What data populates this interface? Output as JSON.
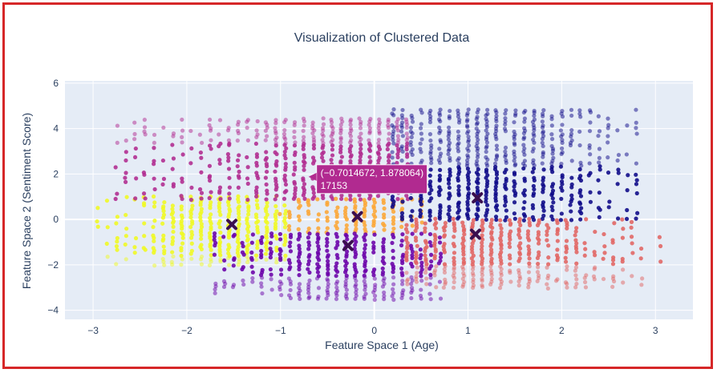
{
  "chart_data": {
    "type": "scatter",
    "title": "Visualization of Clustered Data",
    "xlabel": "Feature Space 1 (Age)",
    "ylabel": "Feature Space 2 (Sentiment Score)",
    "xlim": [
      -3.3,
      3.4
    ],
    "ylim": [
      -4.4,
      6.1
    ],
    "x_ticks": [
      -3,
      -2,
      -1,
      0,
      1,
      2,
      3
    ],
    "y_ticks": [
      -4,
      -2,
      0,
      2,
      4,
      6
    ],
    "x_tick_labels": [
      "−3",
      "−2",
      "−1",
      "0",
      "1",
      "2",
      "3"
    ],
    "y_tick_labels": [
      "−4",
      "−2",
      "0",
      "2",
      "4",
      "6"
    ],
    "grid": true,
    "legend": false,
    "background_color": "#e5ecf6",
    "clusters": [
      {
        "color": "#f0f921",
        "x_range": [
          -2.95,
          -0.9
        ],
        "y_range": [
          -2.0,
          1.0
        ],
        "centroid": [
          -1.52,
          -0.22
        ]
      },
      {
        "color": "#b12a90",
        "x_range": [
          -2.75,
          0.35
        ],
        "y_range": [
          0.9,
          4.5
        ],
        "centroid": [
          -0.28,
          1.95
        ]
      },
      {
        "color": "#fca636",
        "x_range": [
          -1.0,
          0.5
        ],
        "y_range": [
          -0.55,
          0.95
        ],
        "centroid": [
          -0.18,
          0.12
        ]
      },
      {
        "color": "#6a00a8",
        "x_range": [
          -1.7,
          0.7
        ],
        "y_range": [
          -3.5,
          -0.55
        ],
        "centroid": [
          -0.28,
          -1.15
        ]
      },
      {
        "color": "#0d0887",
        "x_range": [
          0.2,
          2.85
        ],
        "y_range": [
          0.0,
          4.9
        ],
        "centroid": [
          1.1,
          0.95
        ]
      },
      {
        "color": "#e16462",
        "x_range": [
          0.35,
          3.05
        ],
        "y_range": [
          -3.0,
          0.0
        ],
        "centroid": [
          1.08,
          -0.65
        ]
      }
    ],
    "hover": {
      "x": -0.7014672,
      "y": 1.878064,
      "line1": "(−0.7014672, 1.878064)",
      "line2": "17153",
      "color": "#b12a90"
    }
  }
}
